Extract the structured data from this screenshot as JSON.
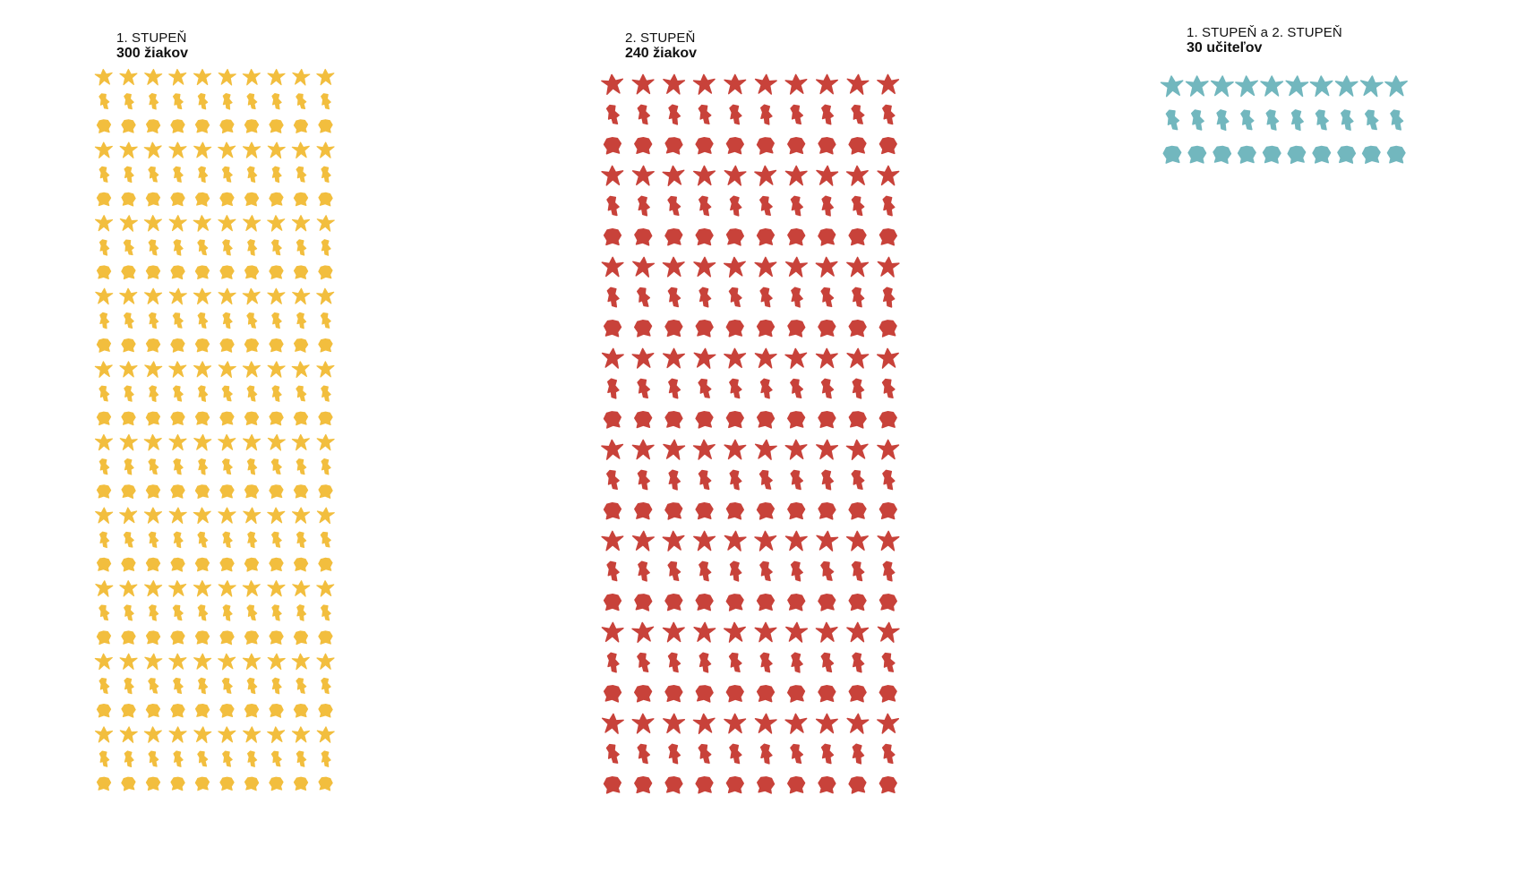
{
  "chart_data": [
    {
      "type": "pictogram",
      "group_label": "1. STUPEŇ",
      "count_label": "300 žiakov",
      "value": 300,
      "unit": "žiakov",
      "columns": 10,
      "icon": "student-figure-icon",
      "color": "#F2BE3E"
    },
    {
      "type": "pictogram",
      "group_label": "2. STUPEŇ",
      "count_label": "240 žiakov",
      "value": 240,
      "unit": "žiakov",
      "columns": 10,
      "icon": "student-figure-icon",
      "color": "#C8423A"
    },
    {
      "type": "pictogram",
      "group_label": "1. STUPEŇ a 2. STUPEŇ",
      "count_label": "30 učiteľov",
      "value": 30,
      "unit": "učiteľov",
      "columns": 10,
      "icon": "teacher-figure-icon",
      "color": "#72B7BE"
    }
  ]
}
